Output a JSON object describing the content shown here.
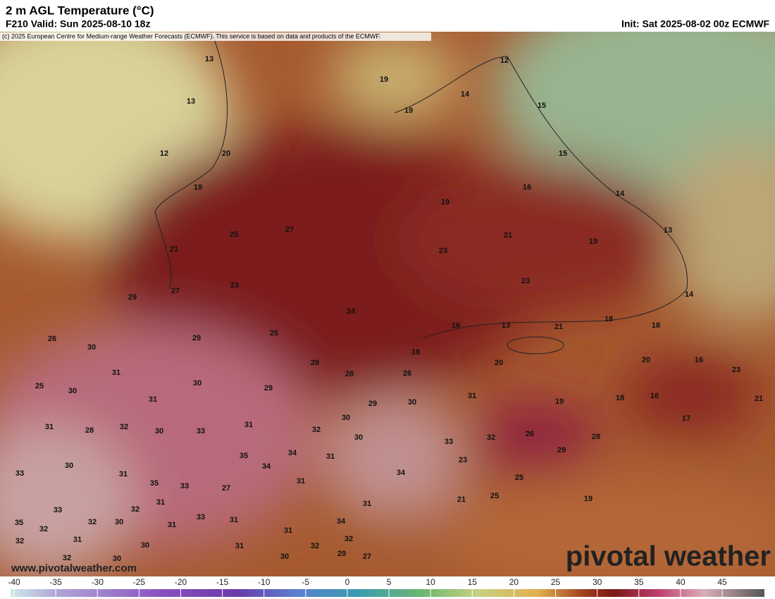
{
  "header": {
    "title": "2 m AGL Temperature (°C)",
    "valid": "F210 Valid: Sun 2025-08-10 18z",
    "init": "Init: Sat 2025-08-02 00z ECMWF",
    "copyright": "(c) 2025 European Centre for Medium-range Weather Forecasts (ECMWF). This service is based on data and products of the ECMWF."
  },
  "map": {
    "temperature_labels": [
      13,
      19,
      12,
      14,
      19,
      15,
      13,
      20,
      12,
      15,
      19,
      16,
      19,
      14,
      25,
      27,
      21,
      13,
      19,
      21,
      23,
      23,
      27,
      23,
      29,
      14,
      24,
      18,
      16,
      13,
      21,
      18,
      25,
      29,
      26,
      30,
      18,
      28,
      20,
      20,
      16,
      23,
      31,
      28,
      26,
      30,
      29,
      25,
      30,
      31,
      18,
      16,
      21,
      31,
      29,
      30,
      19,
      17,
      30,
      31,
      28,
      32,
      30,
      33,
      31,
      32,
      26,
      28,
      30,
      32,
      29,
      33,
      34,
      35,
      31,
      23,
      33,
      30,
      31,
      34,
      34,
      25,
      35,
      33,
      27,
      31,
      31,
      21,
      25,
      19,
      33,
      32,
      31,
      33,
      31,
      35,
      32,
      32,
      30,
      31,
      31,
      34,
      32,
      31,
      30,
      31,
      32,
      32,
      32,
      30,
      30,
      29,
      27
    ]
  },
  "watermark": {
    "url": "www.pivotalweather.com",
    "logo": "pivotal weather"
  },
  "colorbar": {
    "ticks": [
      -40,
      -35,
      -30,
      -25,
      -20,
      -15,
      -10,
      -5,
      0,
      5,
      10,
      15,
      20,
      25,
      30,
      35,
      40,
      45
    ]
  }
}
